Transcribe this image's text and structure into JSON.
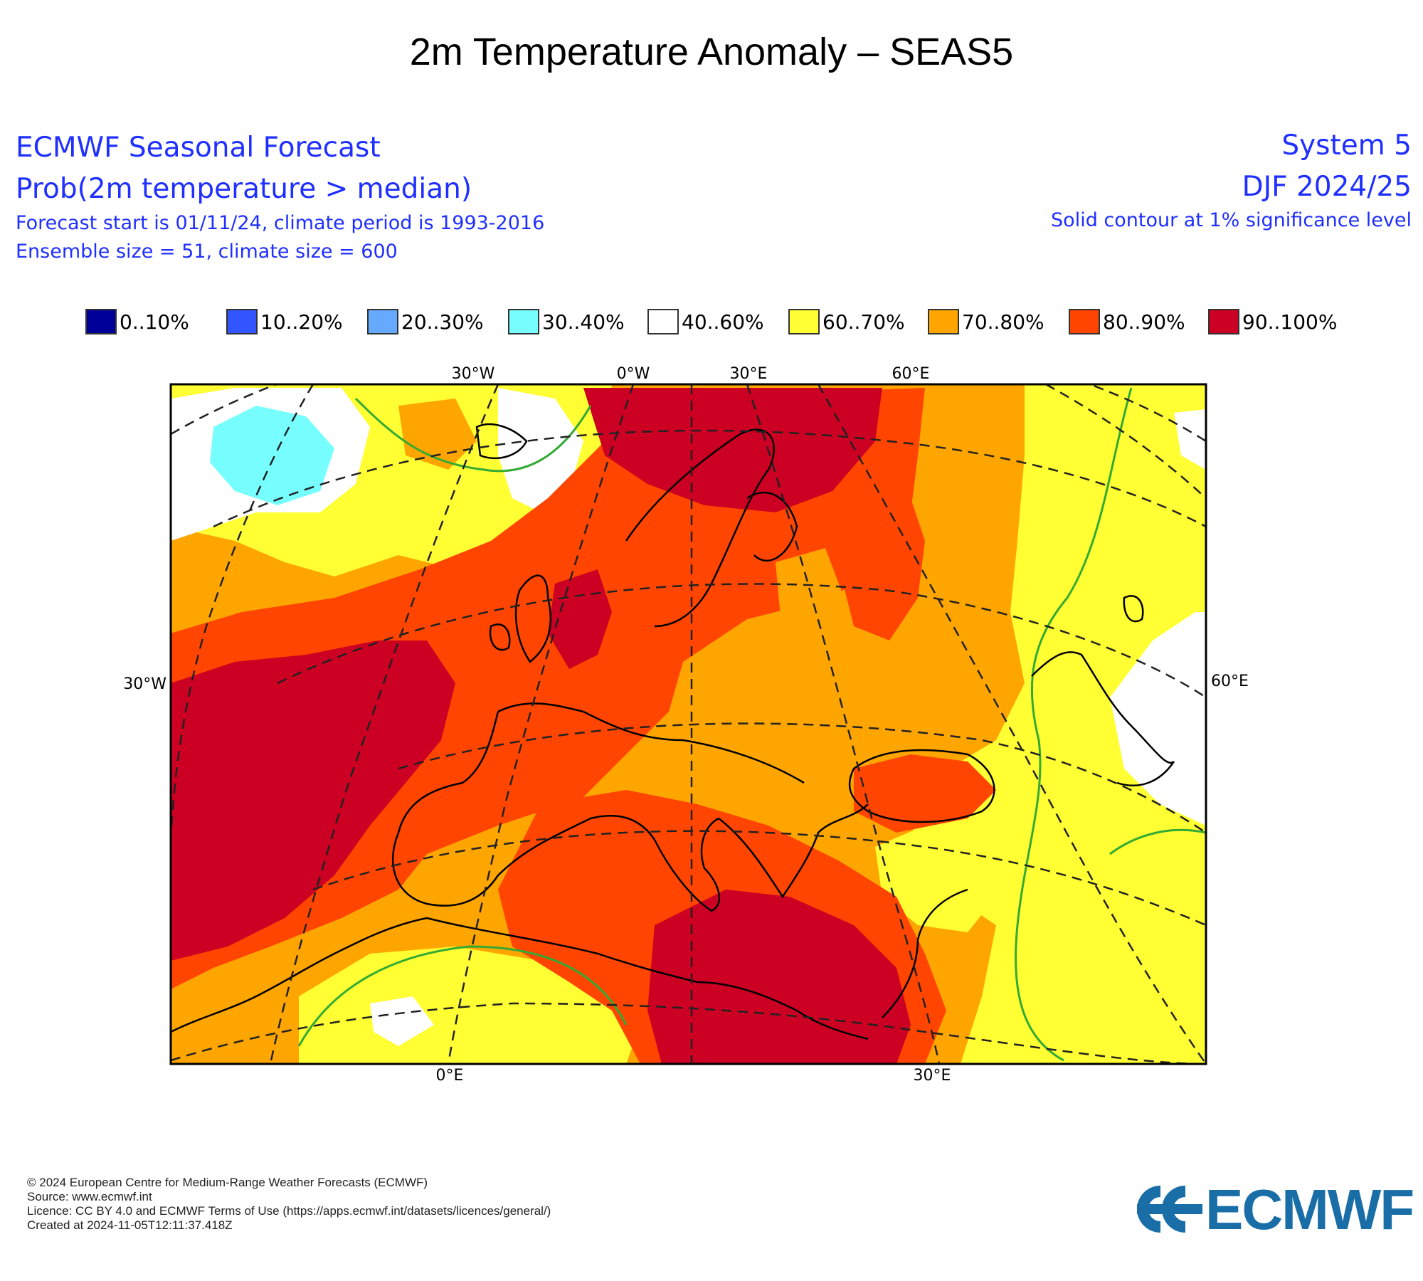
{
  "page_title": "2m Temperature Anomaly – SEAS5",
  "header": {
    "left": [
      "ECMWF Seasonal Forecast",
      "Prob(2m temperature > median)",
      "Forecast start is 01/11/24, climate period is 1993-2016",
      "Ensemble size = 51, climate size = 600"
    ],
    "right": [
      "System 5",
      "DJF 2024/25",
      "Solid contour at 1% significance level"
    ]
  },
  "legend": [
    {
      "label": "0..10%",
      "color": "#000099"
    },
    {
      "label": "10..20%",
      "color": "#3355ff"
    },
    {
      "label": "20..30%",
      "color": "#66aaff"
    },
    {
      "label": "30..40%",
      "color": "#77ffff"
    },
    {
      "label": "40..60%",
      "color": "#ffffff"
    },
    {
      "label": "60..70%",
      "color": "#ffff33"
    },
    {
      "label": "70..80%",
      "color": "#ffa500"
    },
    {
      "label": "80..90%",
      "color": "#ff4500"
    },
    {
      "label": "90..100%",
      "color": "#cc0022"
    }
  ],
  "map_labels": {
    "top": [
      "30°W",
      "0°W",
      "30°E",
      "60°E"
    ],
    "left": "30°W",
    "right": "60°E",
    "bottom": [
      "0°E",
      "30°E"
    ]
  },
  "contour_color": "#33aa33",
  "coast_color": "#000000",
  "footer": [
    "© 2024 European Centre for Medium-Range Weather Forecasts (ECMWF)",
    "Source: www.ecmwf.int",
    "Licence: CC BY 4.0 and ECMWF Terms of Use (https://apps.ecmwf.int/datasets/licences/general/)",
    "Created at 2024-11-05T12:11:37.418Z"
  ],
  "logo": {
    "text": "ECMWF",
    "color": "#1a6ea8"
  }
}
